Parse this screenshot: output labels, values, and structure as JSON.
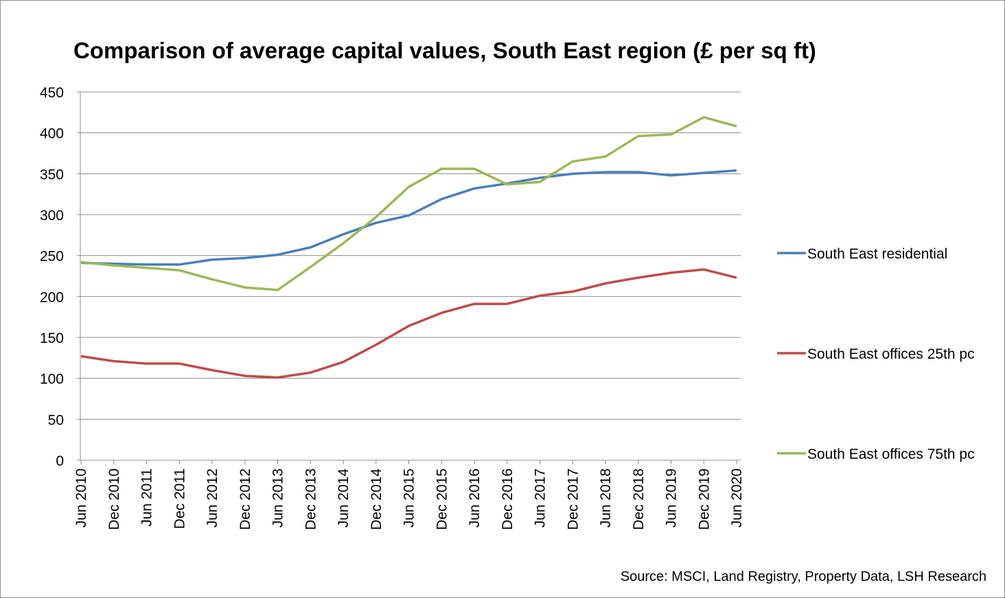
{
  "chart_data": {
    "type": "line",
    "title": "Comparison of average capital values, South East region (£ per sq ft)",
    "xlabel": "",
    "ylabel": "",
    "ylim": [
      0,
      450
    ],
    "yticks": [
      0,
      50,
      100,
      150,
      200,
      250,
      300,
      350,
      400,
      450
    ],
    "grid": true,
    "legend_position": "right",
    "categories": [
      "Jun 2010",
      "Dec 2010",
      "Jun 2011",
      "Dec 2011",
      "Jun 2012",
      "Dec 2012",
      "Jun 2013",
      "Dec 2013",
      "Jun 2014",
      "Dec 2014",
      "Jun 2015",
      "Dec 2015",
      "Jun 2016",
      "Dec 2016",
      "Jun 2017",
      "Dec 2017",
      "Jun 2018",
      "Dec 2018",
      "Jun 2019",
      "Dec 2019",
      "Jun 2020"
    ],
    "series": [
      {
        "name": "South East residential",
        "color": "#4a7ebb",
        "values": [
          241,
          240,
          239,
          239,
          245,
          247,
          251,
          260,
          276,
          290,
          299,
          319,
          332,
          338,
          345,
          350,
          352,
          352,
          348,
          351,
          354
        ]
      },
      {
        "name": "South East offices 25th pc",
        "color": "#be4b48",
        "values": [
          127,
          121,
          118,
          118,
          110,
          103,
          101,
          107,
          120,
          141,
          164,
          180,
          191,
          191,
          201,
          206,
          216,
          223,
          229,
          233,
          223
        ]
      },
      {
        "name": "South East offices 75th pc",
        "color": "#98b954",
        "values": [
          242,
          238,
          235,
          232,
          221,
          211,
          208,
          236,
          265,
          297,
          334,
          356,
          356,
          337,
          340,
          365,
          371,
          396,
          398,
          419,
          408
        ]
      }
    ],
    "source": "Source: MSCI, Land Registry, Property Data, LSH Research"
  }
}
